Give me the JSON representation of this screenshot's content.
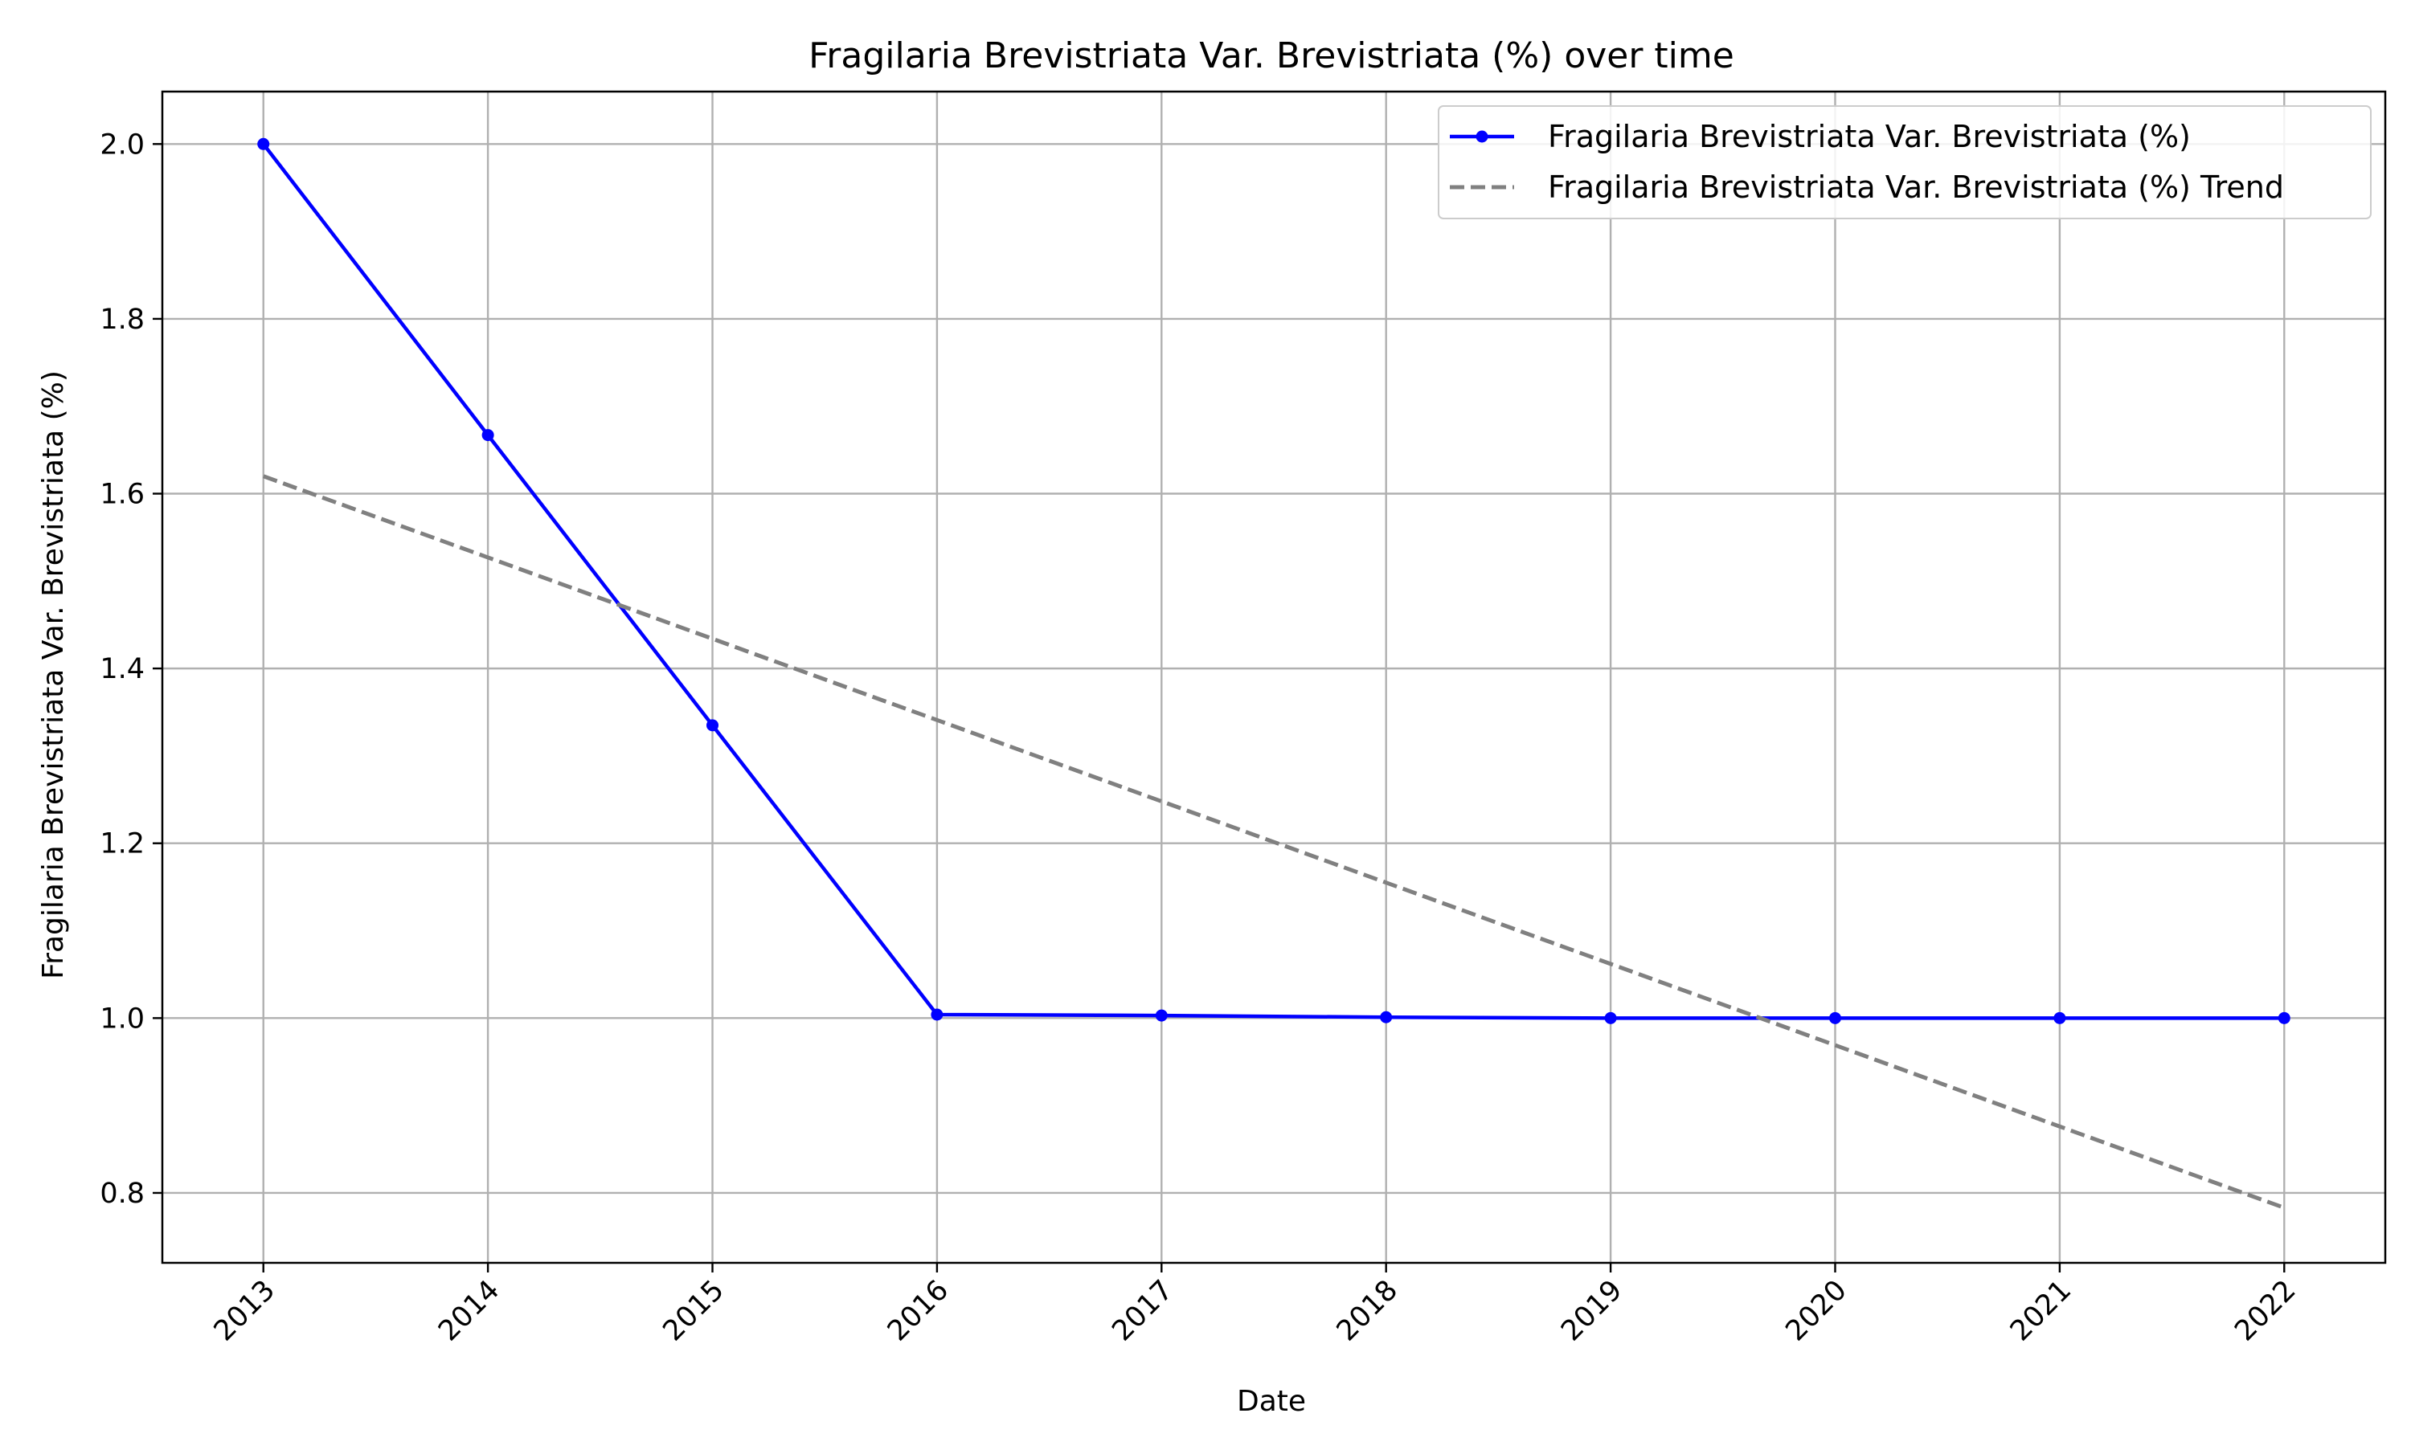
{
  "chart_data": {
    "type": "line",
    "title": "Fragilaria Brevistriata Var. Brevistriata (%) over time",
    "xlabel": "Date",
    "ylabel": "Fragilaria Brevistriata Var. Brevistriata (%)",
    "x": [
      "2013",
      "2014",
      "2015",
      "2016",
      "2017",
      "2018",
      "2019",
      "2020",
      "2021",
      "2022"
    ],
    "xlim": [
      "2012.55",
      "2022.45"
    ],
    "ylim": [
      0.72,
      2.06
    ],
    "yticks": [
      "0.8",
      "1.0",
      "1.2",
      "1.4",
      "1.6",
      "1.8",
      "2.0"
    ],
    "grid": true,
    "legend_position": "top-right",
    "series": [
      {
        "name": "Fragilaria Brevistriata Var. Brevistriata (%)",
        "style": "solid",
        "marker": "circle",
        "color": "#0000ff",
        "values": [
          2.0,
          1.667,
          1.335,
          1.004,
          1.003,
          1.001,
          1.0,
          1.0,
          1.0,
          1.0
        ]
      },
      {
        "name": "Fragilaria Brevistriata Var. Brevistriata (%) Trend",
        "style": "dashed",
        "color": "#808080",
        "values": [
          1.62,
          1.527,
          1.434,
          1.341,
          1.248,
          1.155,
          1.062,
          0.969,
          0.876,
          0.783
        ]
      }
    ]
  }
}
